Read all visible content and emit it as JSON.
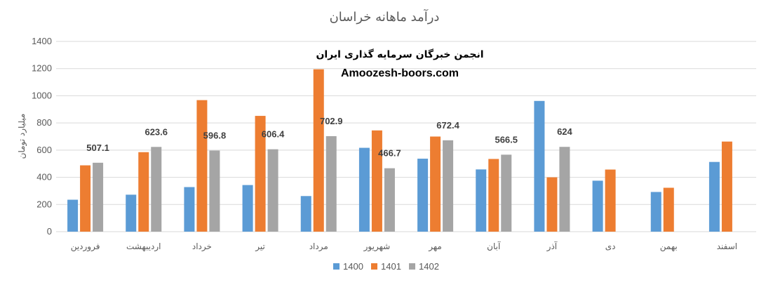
{
  "chart_data": {
    "type": "bar",
    "title": "درآمد ماهانه خراسان",
    "ylabel": "میلیارد تومان",
    "xlabel": "",
    "ylim": [
      0,
      1400
    ],
    "yticks": [
      0,
      200,
      400,
      600,
      800,
      1000,
      1200,
      1400
    ],
    "grid": true,
    "legend_position": "bottom",
    "categories": [
      "فروردین",
      "اردیبهشت",
      "خرداد",
      "تیر",
      "مرداد",
      "شهریور",
      "مهر",
      "آبان",
      "آذر",
      "دی",
      "بهمن",
      "اسفند"
    ],
    "series": [
      {
        "name": "1400",
        "color": "#5b9bd5",
        "values": [
          235,
          272,
          328,
          343,
          262,
          617,
          537,
          458,
          962,
          375,
          292,
          513
        ]
      },
      {
        "name": "1401",
        "color": "#ed7d31",
        "values": [
          488,
          585,
          968,
          852,
          1195,
          745,
          700,
          535,
          400,
          457,
          323,
          663
        ]
      },
      {
        "name": "1402",
        "color": "#a5a5a5",
        "values": [
          507.1,
          623.6,
          596.8,
          606.4,
          702.9,
          466.7,
          672.4,
          566.5,
          624,
          null,
          null,
          null
        ]
      }
    ],
    "data_labels": {
      "series": "1402",
      "values": [
        "507.1",
        "623.6",
        "596.8",
        "606.4",
        "702.9",
        "466.7",
        "672.4",
        "566.5",
        "624"
      ]
    }
  },
  "watermark": {
    "line1": "انجمن خبرگان سرمایه گذاری ایران",
    "line2": "Amoozesh-boors.com"
  }
}
